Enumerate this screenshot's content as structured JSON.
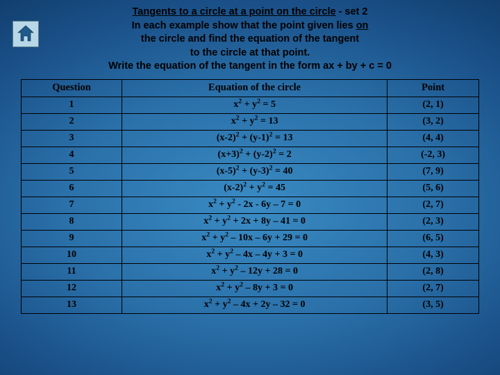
{
  "background": {
    "gradient_center": "#3a8bc4",
    "gradient_outer": "#072040"
  },
  "home_button": {
    "name": "home-icon",
    "fill": "#1e5a8a",
    "bg": "#b8d8e8"
  },
  "header": {
    "line1_a": "Tangents to a circle at a point on the circle",
    "line1_b": " -  set 2",
    "line2_a": "In each example show that the point given lies ",
    "line2_b": "on",
    "line3": "the circle and find the equation of the tangent",
    "line4": "to the circle at that point.",
    "line5": "Write the equation of the tangent in the form ax + by + c = 0"
  },
  "table": {
    "border_color": "#000000",
    "text_color": "#000000",
    "font_family": "Times New Roman",
    "cell_fontsize": 14,
    "columns": [
      "Question",
      "Equation of the circle",
      "Point"
    ],
    "rows": [
      {
        "q": "1",
        "eq": "x<sup>2</sup> + y<sup>2</sup> = 5",
        "pt": "(2, 1)"
      },
      {
        "q": "2",
        "eq": "x<sup>2</sup> + y<sup>2</sup> = 13",
        "pt": "(3, 2)"
      },
      {
        "q": "3",
        "eq": "(x-2)<sup>2</sup> + (y-1)<sup>2</sup> = 13",
        "pt": "(4, 4)"
      },
      {
        "q": "4",
        "eq": "(x+3)<sup>2</sup> + (y-2)<sup>2</sup> = 2",
        "pt": "(-2, 3)"
      },
      {
        "q": "5",
        "eq": "(x-5)<sup>2</sup> + (y-3)<sup>2</sup> = 40",
        "pt": "(7, 9)"
      },
      {
        "q": "6",
        "eq": "(x-2)<sup>2</sup> + y<sup>2</sup> = 45",
        "pt": "(5, 6)"
      },
      {
        "q": "7",
        "eq": "x<sup>2</sup> + y<sup>2</sup> - 2x - 6y – 7 = 0",
        "pt": "(2, 7)"
      },
      {
        "q": "8",
        "eq": "x<sup>2</sup> + y<sup>2</sup>  + 2x + 8y – 41 = 0",
        "pt": "(2, 3)"
      },
      {
        "q": "9",
        "eq": "x<sup>2</sup> + y<sup>2</sup> – 10x – 6y + 29 = 0",
        "pt": "(6, 5)"
      },
      {
        "q": "10",
        "eq": "x<sup>2</sup> + y<sup>2</sup> – 4x – 4y + 3 = 0",
        "pt": "(4, 3)"
      },
      {
        "q": "11",
        "eq": "x<sup>2</sup> + y<sup>2</sup> – 12y + 28 = 0",
        "pt": "(2, 8)"
      },
      {
        "q": "12",
        "eq": "x<sup>2</sup> + y<sup>2</sup> – 8y + 3 = 0",
        "pt": "(2, 7)"
      },
      {
        "q": "13",
        "eq": "x<sup>2</sup> + y<sup>2</sup> – 4x + 2y – 32 = 0",
        "pt": "(3, 5)"
      }
    ]
  }
}
